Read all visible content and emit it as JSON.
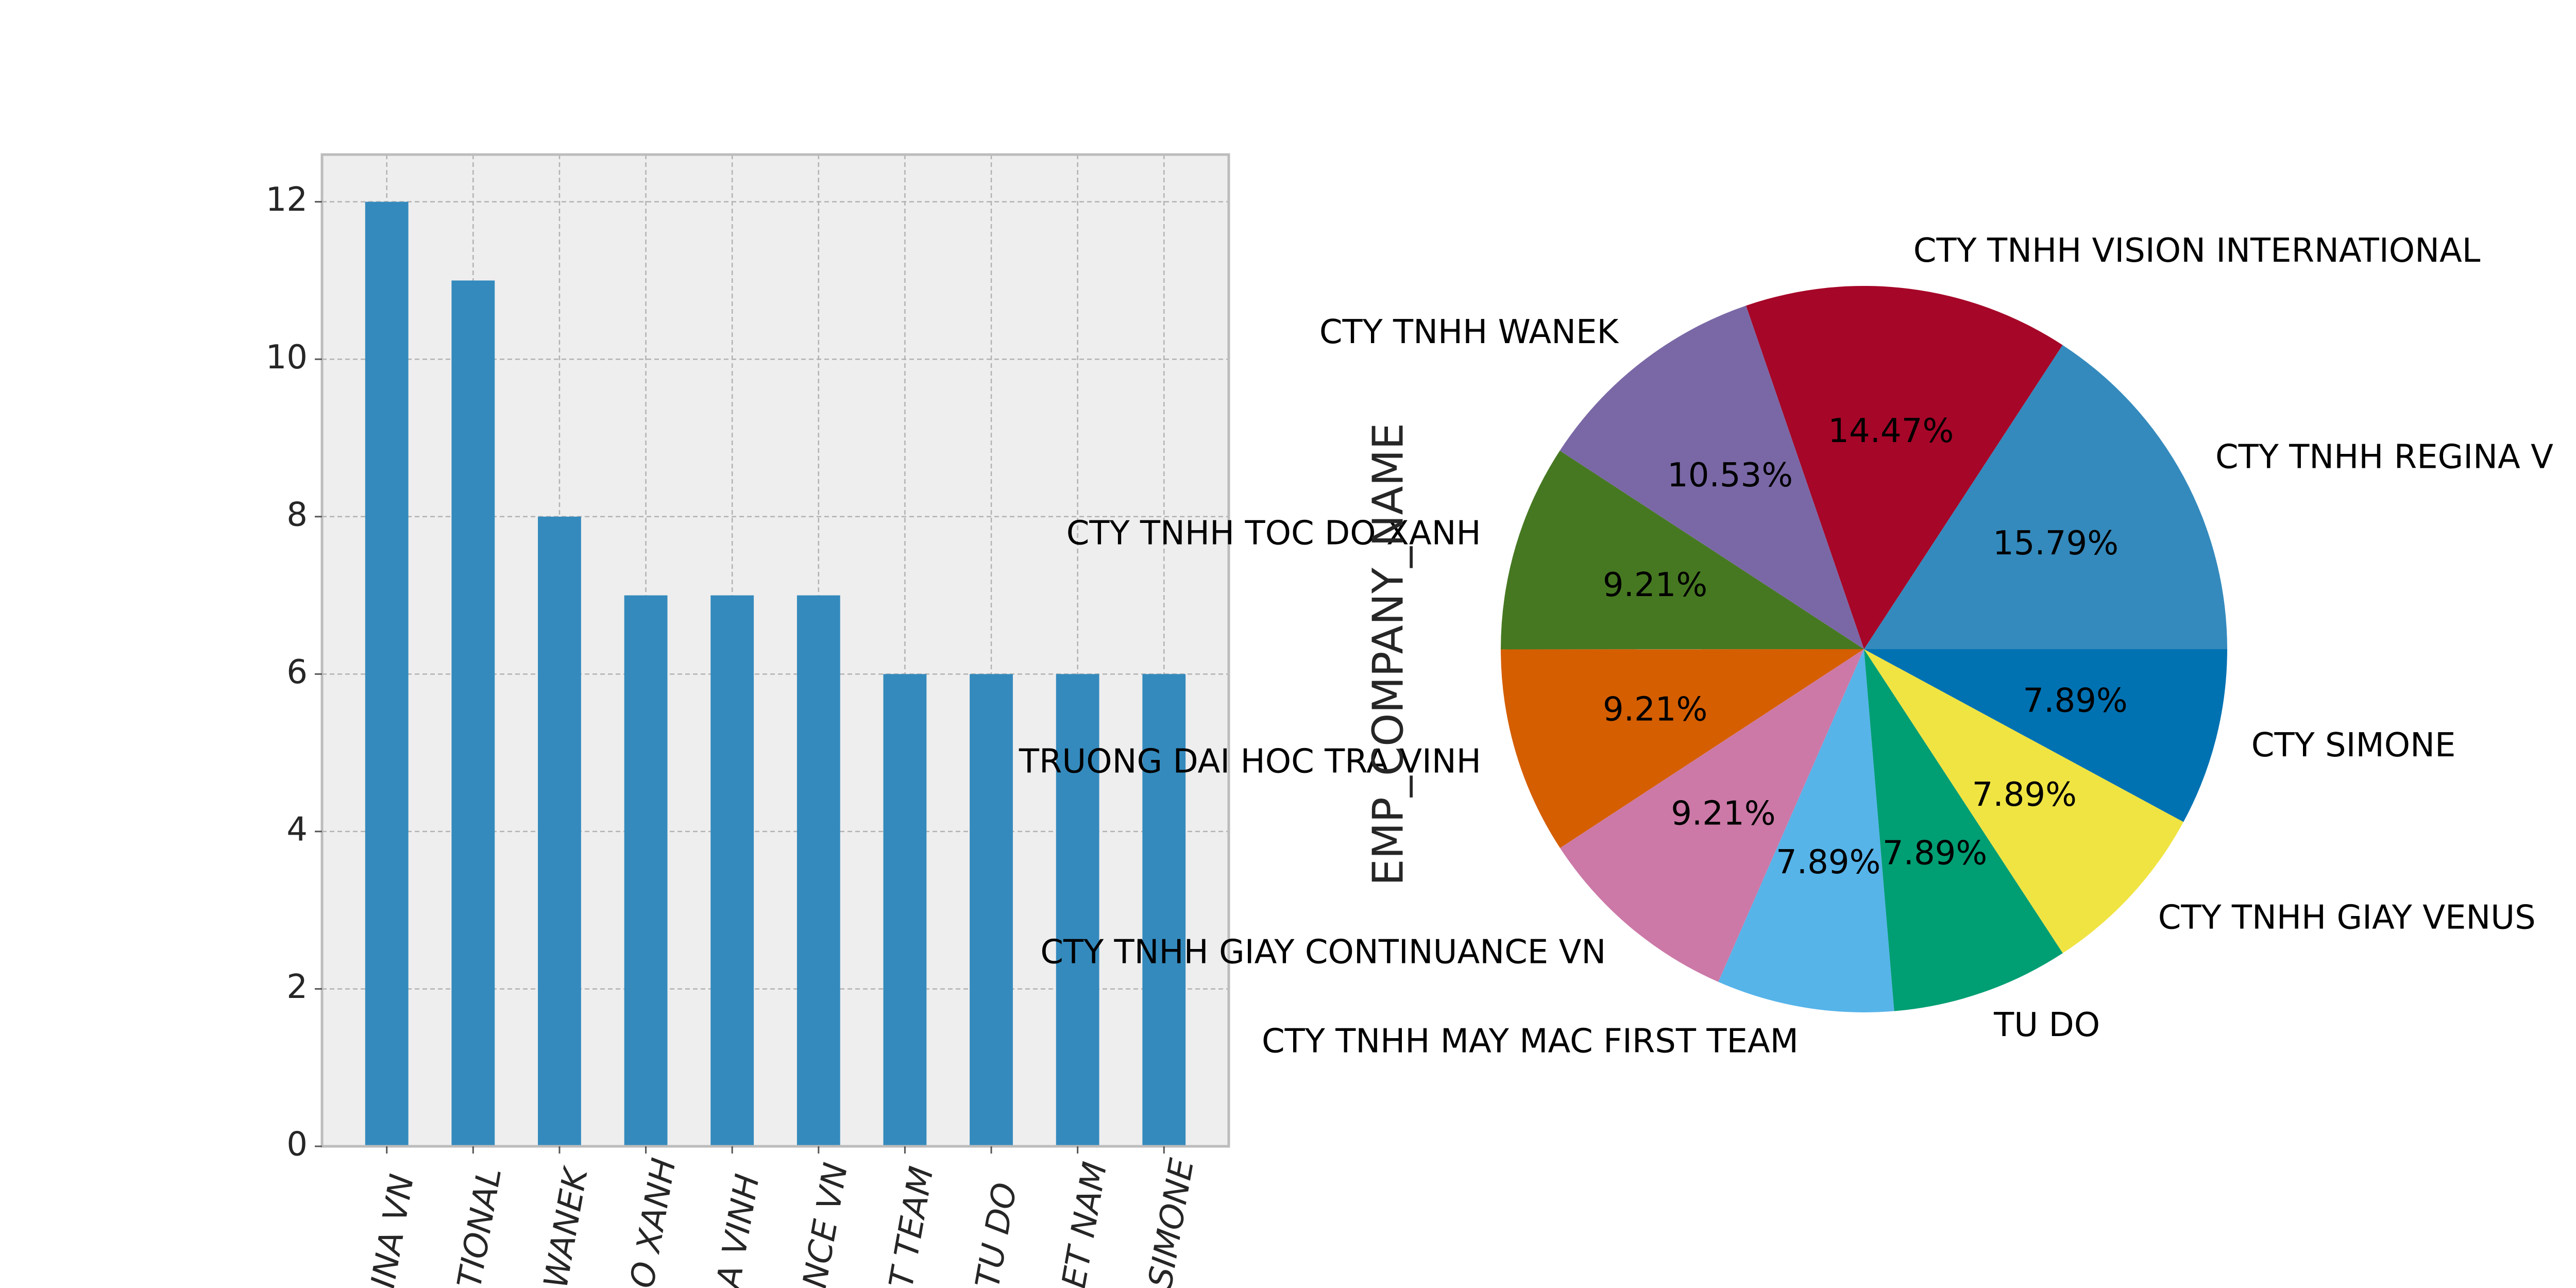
{
  "chart_data": [
    {
      "type": "bar",
      "categories": [
        "CTY TNHH REGINA VN",
        "CTY TNHH VISION INTERNATIONAL",
        "CTY TNHH WANEK",
        "CTY TNHH TOC DO XANH",
        "TRUONG DAI HOC TRA VINH",
        "CTY TNHH GIAY CONTINUANCE VN",
        "CTY TNHH MAY MAC FIRST TEAM",
        "TU DO",
        "CTY TNHH GIAY VENUS VIET NAM",
        "CTY SIMONE"
      ],
      "visible_tick_labels": [
        "INA VN",
        "TIONAL",
        "WANEK",
        "O XANH",
        "A VINH",
        "NCE VN",
        "T TEAM",
        "TU DO",
        "ET NAM",
        "SIMONE"
      ],
      "values": [
        12,
        11,
        8,
        7,
        7,
        7,
        6,
        6,
        6,
        6
      ],
      "ylim": [
        0,
        12.6
      ],
      "yticks": [
        0,
        2,
        4,
        6,
        8,
        10,
        12
      ],
      "grid": true,
      "bar_color": "#348ABD",
      "background_color": "#EEEEEE",
      "title": "",
      "xlabel": "",
      "ylabel": ""
    },
    {
      "type": "pie",
      "ylabel": "EMP_COMPANY_NAME",
      "slices": [
        {
          "label": "CTY TNHH REGINA VN",
          "value": 15.79,
          "pct": "15.79%",
          "color": "#348ABD"
        },
        {
          "label": "CTY TNHH VISION INTERNATIONAL",
          "value": 14.47,
          "pct": "14.47%",
          "color": "#A60628"
        },
        {
          "label": "CTY TNHH WANEK",
          "value": 10.53,
          "pct": "10.53%",
          "color": "#7A68A6"
        },
        {
          "label": "CTY TNHH TOC DO XANH",
          "value": 9.21,
          "pct": "9.21%",
          "color": "#467821"
        },
        {
          "label": "TRUONG DAI HOC TRA VINH",
          "value": 9.21,
          "pct": "9.21%",
          "color": "#D55E00"
        },
        {
          "label": "CTY TNHH GIAY CONTINUANCE VN",
          "value": 9.21,
          "pct": "9.21%",
          "color": "#CC79A7"
        },
        {
          "label": "CTY TNHH MAY MAC FIRST TEAM",
          "value": 7.89,
          "pct": "7.89%",
          "color": "#56B4E9"
        },
        {
          "label": "TU DO",
          "value": 7.89,
          "pct": "7.89%",
          "color": "#009E73"
        },
        {
          "label": "CTY TNHH GIAY VENUS VIET NAM",
          "value": 7.89,
          "pct": "7.89%",
          "color": "#F0E442"
        },
        {
          "label": "CTY SIMONE",
          "value": 7.89,
          "pct": "7.89%",
          "color": "#0072B2"
        }
      ],
      "visible_outer_labels": [
        "CTY TNHH REGINA V",
        "CTY TNHH VISION INTERNATIONAL",
        "CTY TNHH WANEK",
        "CTY TNHH TOC DO XANH",
        "TRUONG DAI HOC TRA VINH",
        "CTY TNHH GIAY CONTINUANCE VN",
        "CTY TNHH MAY MAC FIRST TEAM",
        "TU DO",
        "CTY TNHH GIAY VENUS",
        "CTY SIMONE"
      ],
      "start_angle_deg": 0,
      "direction": "counterclockwise"
    }
  ]
}
